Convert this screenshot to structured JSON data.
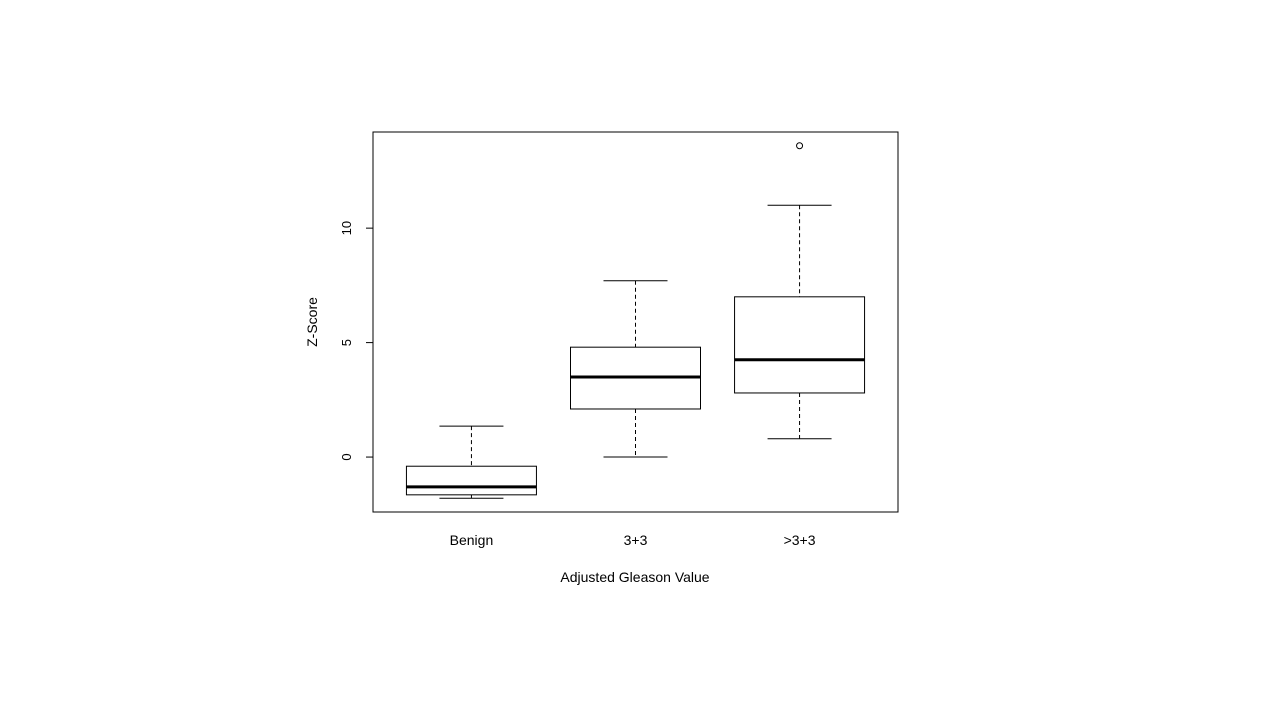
{
  "chart_data": {
    "type": "boxplot",
    "title": "",
    "xlabel": "Adjusted Gleason Value",
    "ylabel": "Z-Score",
    "ylim": [
      -2.4,
      14.2
    ],
    "yticks": [
      0,
      5,
      10
    ],
    "grid": false,
    "categories": [
      "Benign",
      "3+3",
      ">3+3"
    ],
    "boxes": [
      {
        "category": "Benign",
        "whisker_low": -1.8,
        "q1": -1.65,
        "median": -1.3,
        "q3": -0.4,
        "whisker_high": 1.35,
        "outliers": []
      },
      {
        "category": "3+3",
        "whisker_low": 0.0,
        "q1": 2.1,
        "median": 3.5,
        "q3": 4.8,
        "whisker_high": 7.7,
        "outliers": []
      },
      {
        "category": ">3+3",
        "whisker_low": 0.8,
        "q1": 2.8,
        "median": 4.25,
        "q3": 7.0,
        "whisker_high": 11.0,
        "outliers": [
          13.6
        ]
      }
    ]
  }
}
